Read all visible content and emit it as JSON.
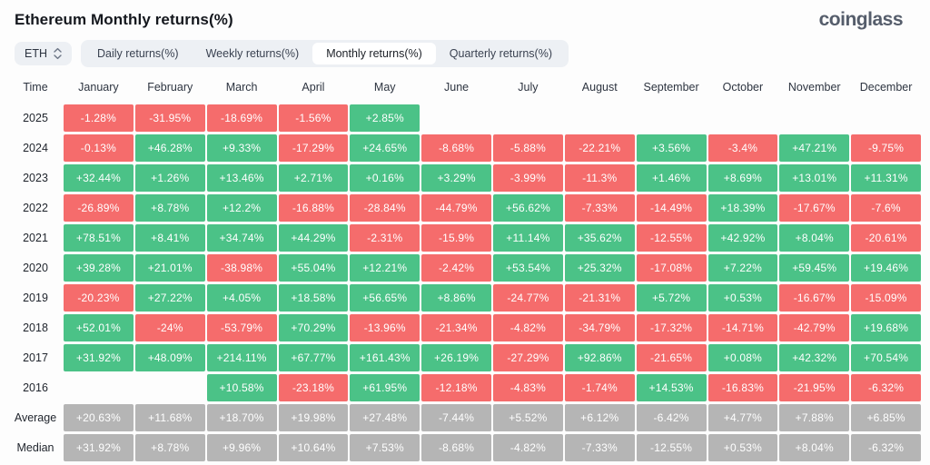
{
  "header": {
    "title": "Ethereum Monthly returns(%)",
    "brand": "coinglass"
  },
  "toolbar": {
    "symbol_select": {
      "value": "ETH"
    },
    "tabs": [
      {
        "label": "Daily returns(%)",
        "active": false
      },
      {
        "label": "Weekly returns(%)",
        "active": false
      },
      {
        "label": "Monthly returns(%)",
        "active": true
      },
      {
        "label": "Quarterly returns(%)",
        "active": false
      }
    ]
  },
  "colors": {
    "positive": "#4bc287",
    "negative": "#f56c6c",
    "neutral": "#b5b5b5",
    "pill_bg": "#edf0f4"
  },
  "chart_data": {
    "type": "heatmap",
    "title": "Ethereum Monthly returns(%)",
    "columns": [
      "Time",
      "January",
      "February",
      "March",
      "April",
      "May",
      "June",
      "July",
      "August",
      "September",
      "October",
      "November",
      "December"
    ],
    "rows": [
      {
        "label": "2025",
        "type": "year",
        "values": [
          "-1.28%",
          "-31.95%",
          "-18.69%",
          "-1.56%",
          "+2.85%",
          null,
          null,
          null,
          null,
          null,
          null,
          null
        ]
      },
      {
        "label": "2024",
        "type": "year",
        "values": [
          "-0.13%",
          "+46.28%",
          "+9.33%",
          "-17.29%",
          "+24.65%",
          "-8.68%",
          "-5.88%",
          "-22.21%",
          "+3.56%",
          "-3.4%",
          "+47.21%",
          "-9.75%"
        ]
      },
      {
        "label": "2023",
        "type": "year",
        "values": [
          "+32.44%",
          "+1.26%",
          "+13.46%",
          "+2.71%",
          "+0.16%",
          "+3.29%",
          "-3.99%",
          "-11.3%",
          "+1.46%",
          "+8.69%",
          "+13.01%",
          "+11.31%"
        ]
      },
      {
        "label": "2022",
        "type": "year",
        "values": [
          "-26.89%",
          "+8.78%",
          "+12.2%",
          "-16.88%",
          "-28.84%",
          "-44.79%",
          "+56.62%",
          "-7.33%",
          "-14.49%",
          "+18.39%",
          "-17.67%",
          "-7.6%"
        ]
      },
      {
        "label": "2021",
        "type": "year",
        "values": [
          "+78.51%",
          "+8.41%",
          "+34.74%",
          "+44.29%",
          "-2.31%",
          "-15.9%",
          "+11.14%",
          "+35.62%",
          "-12.55%",
          "+42.92%",
          "+8.04%",
          "-20.61%"
        ]
      },
      {
        "label": "2020",
        "type": "year",
        "values": [
          "+39.28%",
          "+21.01%",
          "-38.98%",
          "+55.04%",
          "+12.21%",
          "-2.42%",
          "+53.54%",
          "+25.32%",
          "-17.08%",
          "+7.22%",
          "+59.45%",
          "+19.46%"
        ]
      },
      {
        "label": "2019",
        "type": "year",
        "values": [
          "-20.23%",
          "+27.22%",
          "+4.05%",
          "+18.58%",
          "+56.65%",
          "+8.86%",
          "-24.77%",
          "-21.31%",
          "+5.72%",
          "+0.53%",
          "-16.67%",
          "-15.09%"
        ]
      },
      {
        "label": "2018",
        "type": "year",
        "values": [
          "+52.01%",
          "-24%",
          "-53.79%",
          "+70.29%",
          "-13.96%",
          "-21.34%",
          "-4.82%",
          "-34.79%",
          "-17.32%",
          "-14.71%",
          "-42.79%",
          "+19.68%"
        ]
      },
      {
        "label": "2017",
        "type": "year",
        "values": [
          "+31.92%",
          "+48.09%",
          "+214.11%",
          "+67.77%",
          "+161.43%",
          "+26.19%",
          "-27.29%",
          "+92.86%",
          "-21.65%",
          "+0.08%",
          "+42.32%",
          "+70.54%"
        ]
      },
      {
        "label": "2016",
        "type": "year",
        "values": [
          null,
          null,
          "+10.58%",
          "-23.18%",
          "+61.95%",
          "-12.18%",
          "-4.83%",
          "-1.74%",
          "+14.53%",
          "-16.83%",
          "-21.95%",
          "-6.32%"
        ]
      },
      {
        "label": "Average",
        "type": "stat",
        "values": [
          "+20.63%",
          "+11.68%",
          "+18.70%",
          "+19.98%",
          "+27.48%",
          "-7.44%",
          "+5.52%",
          "+6.12%",
          "-6.42%",
          "+4.77%",
          "+7.88%",
          "+6.85%"
        ]
      },
      {
        "label": "Median",
        "type": "stat",
        "values": [
          "+31.92%",
          "+8.78%",
          "+9.96%",
          "+10.64%",
          "+7.53%",
          "-8.68%",
          "-4.82%",
          "-7.33%",
          "-12.55%",
          "+0.53%",
          "+8.04%",
          "-6.32%"
        ]
      }
    ]
  }
}
